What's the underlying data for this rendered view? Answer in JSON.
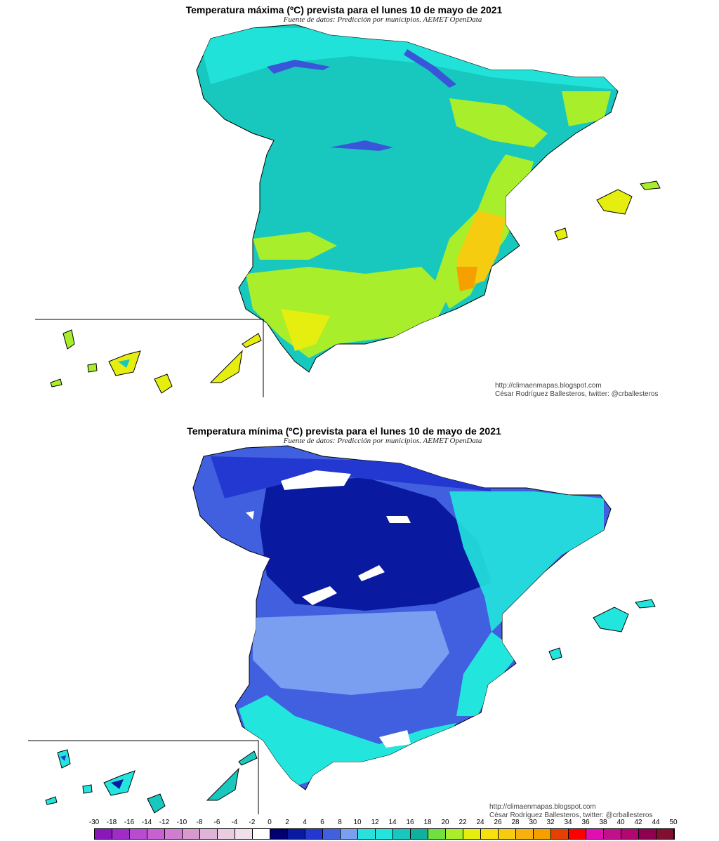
{
  "maps": {
    "max": {
      "title": "Temperatura máxima (ºC) prevista para el lunes 10 de mayo de 2021",
      "subtitle": "Fuente de datos: Predicción por municipios. AEMET OpenData",
      "credit_url": "http://climaenmapas.blogspot.com",
      "credit_author": "César Rodríguez Ballesteros, twitter: @crballesteros",
      "palette": {
        "base": "#18c8bf",
        "north": "#22e6dd",
        "cold": "#3a56d8",
        "warm": "#a8ee2a",
        "hot": "#e6ee10",
        "hotter": "#f6cc10",
        "hottest": "#f6a000"
      }
    },
    "min": {
      "title": "Temperatura mínima (ºC) prevista para el lunes 10 de mayo de 2021",
      "subtitle": "Fuente de datos: Predicción por municipios. AEMET OpenData",
      "credit_url": "http://climaenmapas.blogspot.com",
      "credit_author": "César Rodríguez Ballesteros, twitter: @crballesteros",
      "palette": {
        "base": "#4060e0",
        "deep": "#0a1aa0",
        "mid": "#2238d0",
        "light": "#7a9ef0",
        "cyan": "#2ae0dd",
        "teal": "#18c8bf",
        "snow": "#ffffff"
      }
    }
  },
  "legend": {
    "labels": [
      "-30",
      "-18",
      "-16",
      "-14",
      "-12",
      "-10",
      "-8",
      "-6",
      "-4",
      "-2",
      "0",
      "2",
      "4",
      "6",
      "8",
      "10",
      "12",
      "14",
      "16",
      "18",
      "20",
      "22",
      "24",
      "26",
      "28",
      "30",
      "32",
      "34",
      "36",
      "38",
      "40",
      "42",
      "44",
      "50"
    ],
    "colors": [
      "#8a18b8",
      "#a02cc8",
      "#b84cd0",
      "#c860d0",
      "#d07cd0",
      "#d898d0",
      "#e0b4d8",
      "#e8cce0",
      "#f0e0ec",
      "#ffffff",
      "#000070",
      "#0a1aa0",
      "#2238d0",
      "#4060e0",
      "#7a9ef0",
      "#2ae0dd",
      "#22e6dd",
      "#18c8bf",
      "#10b0a0",
      "#70e040",
      "#a8ee2a",
      "#e6ee10",
      "#f6e010",
      "#f6cc10",
      "#f6b010",
      "#f6a000",
      "#e64000",
      "#ff0000",
      "#e010b0",
      "#c0108a",
      "#b00870",
      "#900050",
      "#801030"
    ]
  }
}
